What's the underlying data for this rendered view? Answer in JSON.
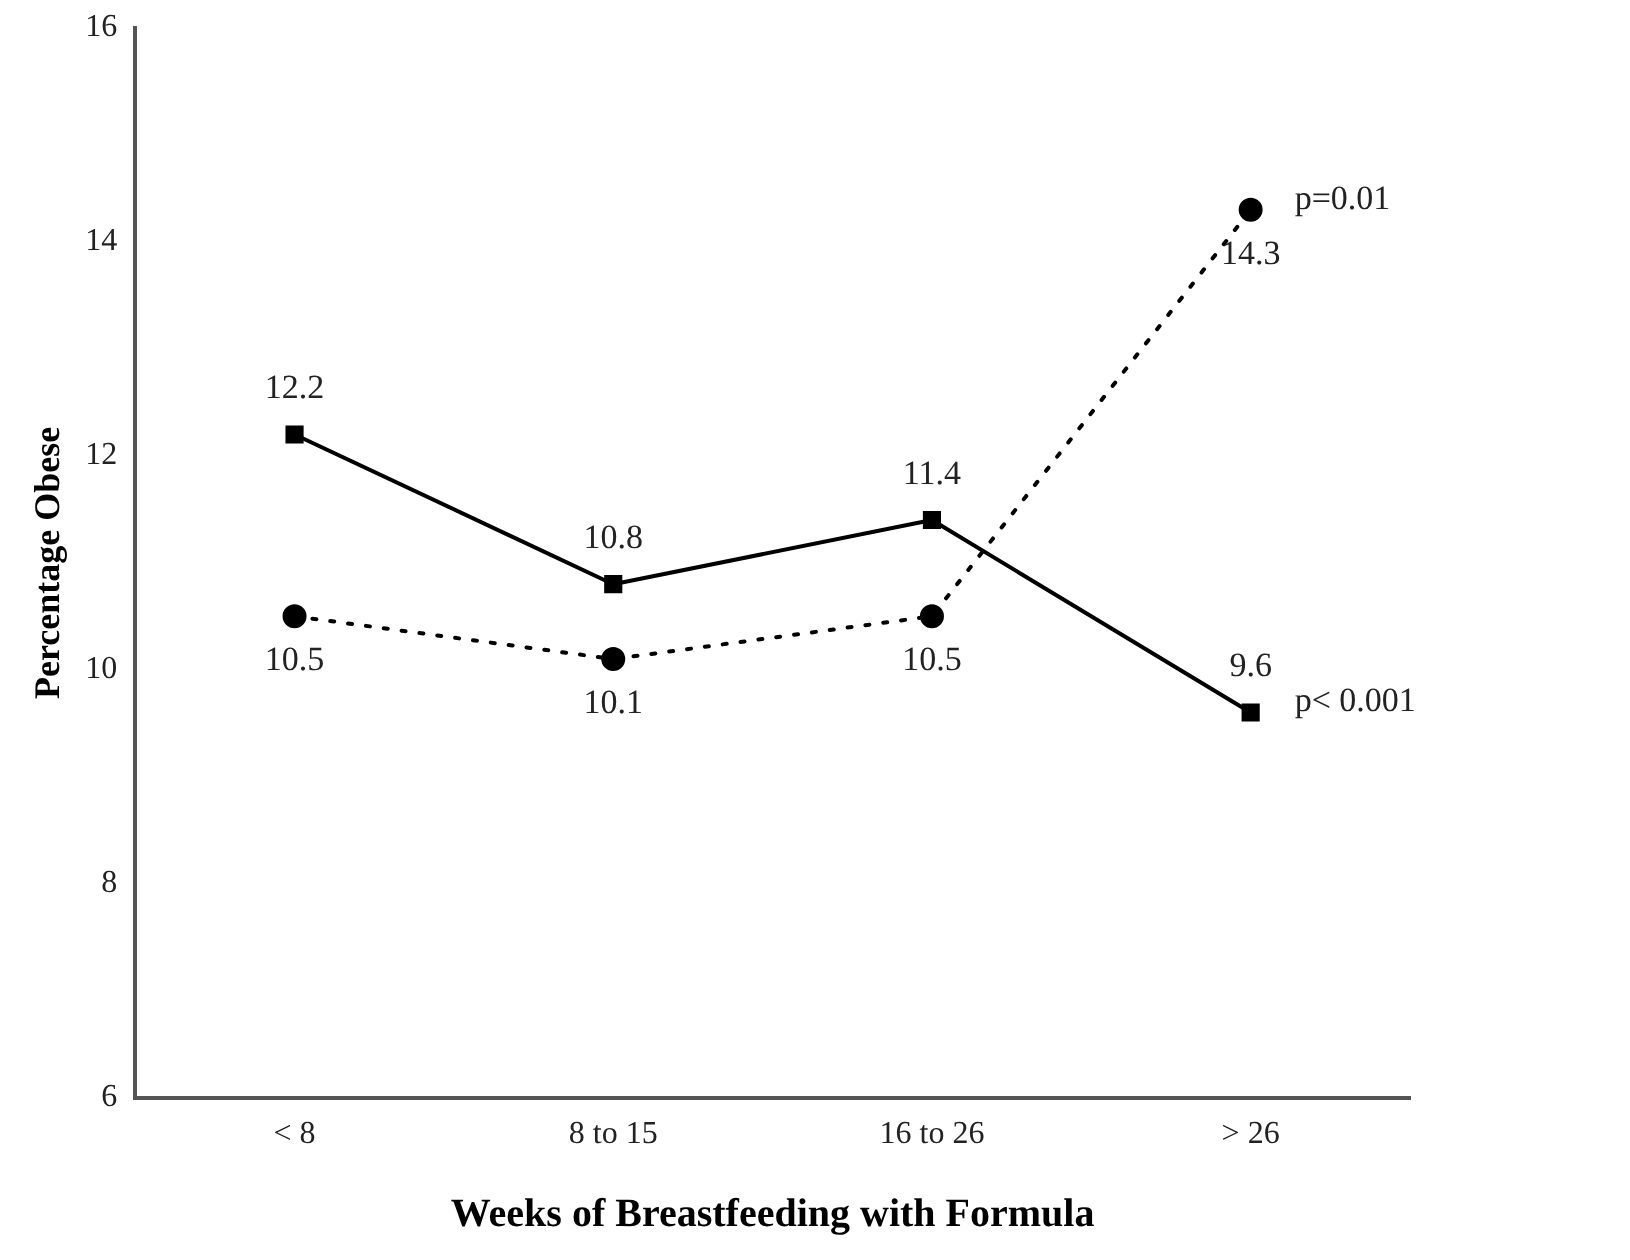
{
  "chart_data": {
    "type": "line",
    "xlabel": "Weeks of Breastfeeding with Formula",
    "ylabel": "Percentage Obese",
    "categories": [
      "< 8",
      "8 to 15",
      "16 to 26",
      "> 26"
    ],
    "series": [
      {
        "color": "#000000",
        "values": [
          12.2,
          10.8,
          11.4,
          9.6
        ],
        "marker": "square",
        "line_style": "solid"
      },
      {
        "color": "#000000",
        "values": [
          10.5,
          10.1,
          10.5,
          14.3
        ],
        "marker": "circle",
        "line_style": "dotted"
      }
    ],
    "ylim": [
      6,
      16
    ],
    "yticks": [
      6,
      8,
      10,
      12,
      14,
      16
    ],
    "grid": false,
    "legend": false,
    "data_labels": true,
    "annotations": [
      {
        "text": "p=0.01",
        "x": "> 26",
        "y": 14.3
      },
      {
        "text": "p< 0.001",
        "x": "> 26",
        "y": 9.6
      }
    ]
  }
}
